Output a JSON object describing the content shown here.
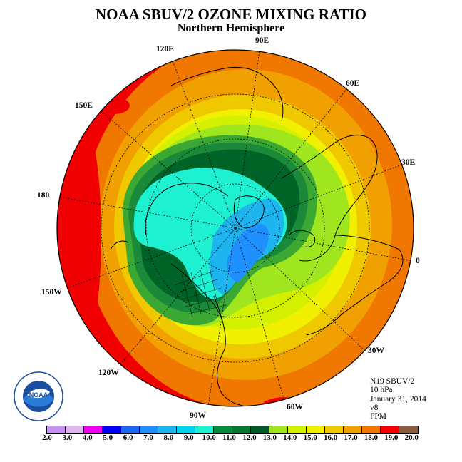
{
  "title": "NOAA SBUV/2 OZONE MIXING RATIO",
  "subtitle": "Northern Hemisphere",
  "longitude_labels": [
    "90E",
    "60E",
    "30E",
    "0",
    "30W",
    "60W",
    "90W",
    "120W",
    "150W",
    "180",
    "150E",
    "120E"
  ],
  "info": {
    "instrument": "N19 SBUV/2",
    "level": "10 hPa",
    "date": "January 31, 2014",
    "version": "v8",
    "units": "PPM"
  },
  "logo_text": "NOAA",
  "colorbar": {
    "ticks": [
      "2.0",
      "3.0",
      "4.0",
      "5.0",
      "6.0",
      "7.0",
      "8.0",
      "9.0",
      "10.0",
      "11.0",
      "12.0",
      "13.0",
      "14.0",
      "15.0",
      "16.0",
      "17.0",
      "18.0",
      "19.0",
      "20.0"
    ],
    "colors": [
      "#c890f0",
      "#e0b8f0",
      "#f000f0",
      "#0000f0",
      "#1e66f0",
      "#1e90ff",
      "#1eb4f0",
      "#00d2f0",
      "#1ef0d2",
      "#008c3c",
      "#007832",
      "#005a28",
      "#a0e61e",
      "#d2f000",
      "#f0f000",
      "#f0c800",
      "#f0a000",
      "#f07800",
      "#f00000",
      "#8c5a3c"
    ]
  },
  "map_colors": {
    "red": "#f00000",
    "orange_red": "#f07800",
    "orange": "#f0a000",
    "gold": "#f0c800",
    "yellow": "#f0f000",
    "yellow_green": "#d2f000",
    "lime": "#a0e61e",
    "green_light": "#3aa832",
    "green_mid": "#1a8a3a",
    "green_dark": "#006428",
    "cyan": "#1ef0d2",
    "sky": "#1eb4f0",
    "blue": "#1e90ff"
  }
}
